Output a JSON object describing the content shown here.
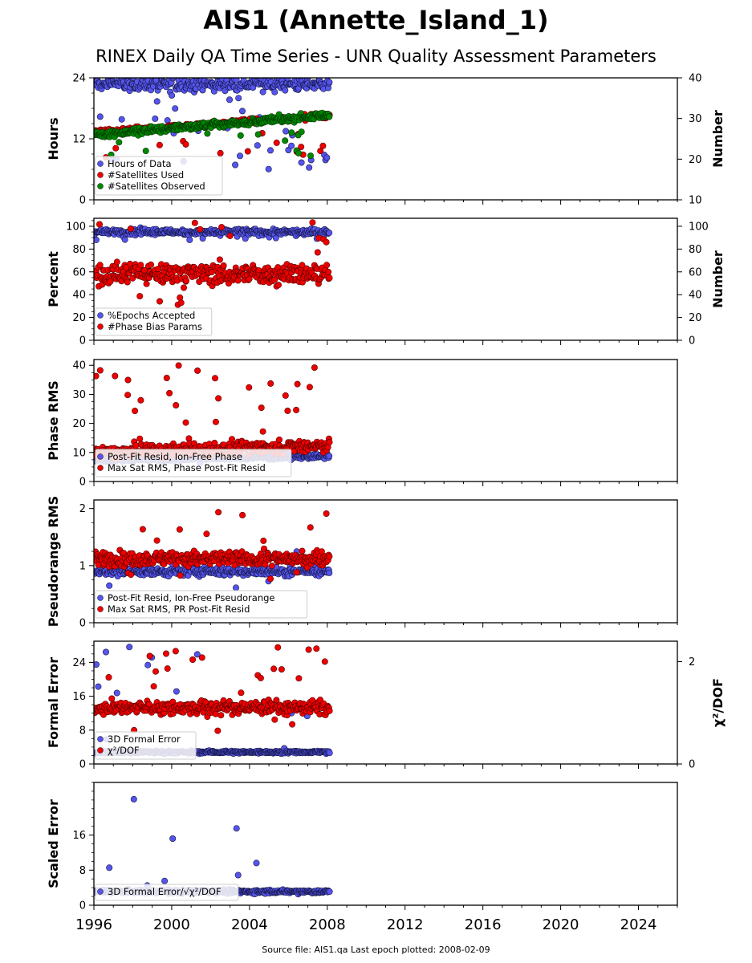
{
  "title": "AIS1 (Annette_Island_1)",
  "subtitle": "RINEX Daily QA Time Series - UNR Quality Assessment Parameters",
  "footer": "Source file: AIS1.qa Last epoch plotted: 2008-02-09",
  "colors": {
    "blue": "#5555ee",
    "red": "#ee0000",
    "green": "#008800",
    "dark_red": "#550000",
    "dark_blue": "#151540"
  },
  "x_axis": {
    "range": [
      1996,
      2026
    ],
    "ticks": [
      1996,
      2000,
      2004,
      2008,
      2012,
      2016,
      2020,
      2024
    ],
    "data_start": 1996.05,
    "data_end": 2008.11
  },
  "chart_data": [
    {
      "type": "scatter",
      "ylabel": "Hours",
      "ylabel_right": "Number",
      "ylim": [
        0,
        24
      ],
      "yticks": [
        0,
        12,
        24
      ],
      "ylim_right": [
        10,
        40
      ],
      "yticks_right": [
        10,
        20,
        30,
        40
      ],
      "series": [
        {
          "name": "Hours of Data",
          "color": "blue",
          "axis": "left",
          "base": 22.8,
          "spread": 1.2,
          "outlier_rate": 0.12,
          "outlier_low": 6,
          "outlier_high": 21
        },
        {
          "name": "#Satellites Used",
          "color": "red",
          "axis": "right",
          "base": 26.5,
          "trend": 0.35,
          "spread": 0.6,
          "outlier_rate": 0.04,
          "outlier_low": 20,
          "outlier_high": 27
        },
        {
          "name": "#Satellites Observed",
          "color": "green",
          "axis": "right",
          "base": 26,
          "trend": 0.4,
          "spread": 0.8,
          "outlier_rate": 0.04,
          "outlier_low": 20,
          "outlier_high": 27
        }
      ],
      "legend": [
        "Hours of Data",
        "#Satellites Used",
        "#Satellites Observed"
      ]
    },
    {
      "type": "scatter",
      "ylabel": "Percent",
      "ylabel_right": "Number",
      "ylim": [
        0,
        107
      ],
      "yticks": [
        0,
        20,
        40,
        60,
        80,
        100
      ],
      "ylim_right": [
        0,
        107
      ],
      "yticks_right": [
        0,
        20,
        40,
        60,
        80,
        100
      ],
      "series": [
        {
          "name": "%Epochs Accepted",
          "color": "blue",
          "axis": "left",
          "base": 95,
          "spread": 2.5,
          "outlier_rate": 0.02,
          "outlier_low": 88,
          "outlier_high": 92
        },
        {
          "name": "#Phase Bias Params",
          "color": "red",
          "axis": "right",
          "base": 58,
          "spread": 9,
          "outlier_rate": 0.06,
          "outlier_low": 18,
          "outlier_high": 104
        }
      ],
      "legend": [
        "%Epochs Accepted",
        "#Phase Bias Params"
      ]
    },
    {
      "type": "scatter",
      "ylabel": "Phase RMS",
      "ylim": [
        0,
        42
      ],
      "yticks": [
        0,
        10,
        20,
        30,
        40
      ],
      "series": [
        {
          "name": "Post-Fit Resid, Ion-Free Phase",
          "color": "blue",
          "axis": "left",
          "base": 7.5,
          "trend": 0.1,
          "spread": 0.8,
          "outlier_rate": 0.01,
          "outlier_low": 6,
          "outlier_high": 10
        },
        {
          "name": "Max Sat RMS, Phase Post-Fit Resid",
          "color": "red",
          "axis": "left",
          "base": 10,
          "trend": 0.2,
          "spread": 2.2,
          "outlier_rate": 0.06,
          "outlier_low": 14,
          "outlier_high": 40
        }
      ],
      "legend": [
        "Post-Fit Resid, Ion-Free Phase",
        "Max Sat RMS, Phase Post-Fit Resid"
      ]
    },
    {
      "type": "scatter",
      "ylabel": "Pseudorange RMS",
      "ylim": [
        0,
        2.15
      ],
      "yticks": [
        0,
        1,
        2
      ],
      "series": [
        {
          "name": "Post-Fit Resid, Ion-Free Pseudorange",
          "color": "blue",
          "axis": "left",
          "base": 0.9,
          "spread": 0.07,
          "outlier_rate": 0.02,
          "outlier_low": 0.5,
          "outlier_high": 1.3
        },
        {
          "name": "Max Sat RMS, PR Post-Fit Resid",
          "color": "red",
          "axis": "left",
          "base": 1.12,
          "spread": 0.12,
          "outlier_rate": 0.06,
          "outlier_low": 0.7,
          "outlier_high": 2.07
        }
      ],
      "legend": [
        "Post-Fit Resid, Ion-Free Pseudorange",
        "Max Sat RMS, PR Post-Fit Resid"
      ]
    },
    {
      "type": "scatter",
      "ylabel": "Formal Error",
      "ylabel_right": "χ²/DOF",
      "ylim": [
        0,
        29
      ],
      "yticks": [
        0,
        8,
        16,
        24
      ],
      "ylim_right": [
        0,
        2.4
      ],
      "yticks_right": [
        0,
        2
      ],
      "series": [
        {
          "name": "3D Formal Error",
          "color": "blue",
          "axis": "left",
          "base": 2.8,
          "spread": 0.3,
          "outlier_rate": 0.03,
          "outlier_low": 3,
          "outlier_high": 28
        },
        {
          "name": "χ²/DOF",
          "color": "red",
          "axis": "right",
          "base": 1.1,
          "spread": 0.12,
          "outlier_rate": 0.06,
          "outlier_low": 0.6,
          "outlier_high": 2.3
        }
      ],
      "legend": [
        "3D Formal Error",
        "χ²/DOF"
      ]
    },
    {
      "type": "scatter",
      "ylabel": "Scaled Error",
      "ylim": [
        0,
        28
      ],
      "yticks": [
        0,
        8,
        16
      ],
      "series": [
        {
          "name": "3D Formal Error/√χ²/DOF",
          "color": "blue",
          "axis": "left",
          "base": 3.1,
          "spread": 0.4,
          "outlier_rate": 0.03,
          "outlier_low": 4,
          "outlier_high": 26.5
        }
      ],
      "legend": [
        "3D Formal Error/√χ²/DOF"
      ]
    }
  ]
}
